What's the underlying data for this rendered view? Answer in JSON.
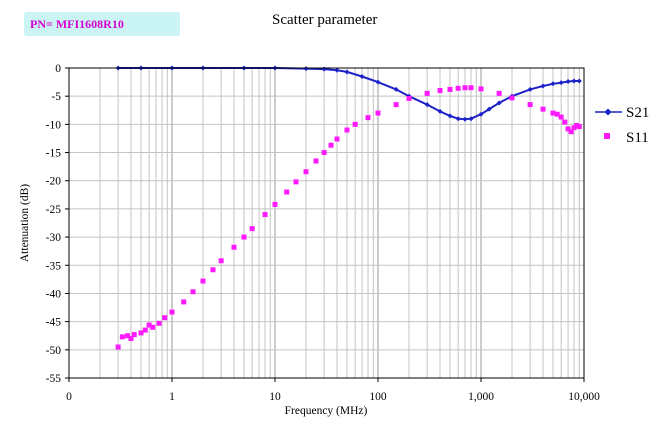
{
  "chart_data": {
    "type": "scatter",
    "title": "Scatter parameter",
    "part_number": "PN= MFI1608R10",
    "xlabel": "Frequency (MHz)",
    "ylabel": "Attenuation (dB)",
    "x_scale": "log",
    "xlim": [
      0.1,
      10000
    ],
    "ylim": [
      -55,
      0
    ],
    "x_tick_labels": [
      "0",
      "1",
      "10",
      "100",
      "1,000",
      "10,000"
    ],
    "y_ticks": [
      0,
      -5,
      -10,
      -15,
      -20,
      -25,
      -30,
      -35,
      -40,
      -45,
      -50,
      -55
    ],
    "grid": true,
    "legend_position": "right",
    "colors": {
      "S21": "#1c22c8",
      "S11": "#ff19ff"
    },
    "series": [
      {
        "name": "S21",
        "marker": "diamond-line",
        "points": [
          [
            0.3,
            0
          ],
          [
            0.5,
            0
          ],
          [
            1,
            0
          ],
          [
            2,
            0
          ],
          [
            5,
            0
          ],
          [
            10,
            0
          ],
          [
            20,
            -0.1
          ],
          [
            30,
            -0.2
          ],
          [
            40,
            -0.4
          ],
          [
            50,
            -0.7
          ],
          [
            70,
            -1.5
          ],
          [
            100,
            -2.5
          ],
          [
            150,
            -3.8
          ],
          [
            200,
            -5
          ],
          [
            300,
            -6.5
          ],
          [
            400,
            -7.7
          ],
          [
            500,
            -8.5
          ],
          [
            600,
            -9
          ],
          [
            700,
            -9.1
          ],
          [
            800,
            -9
          ],
          [
            1000,
            -8.2
          ],
          [
            1200,
            -7.3
          ],
          [
            1500,
            -6.2
          ],
          [
            2000,
            -5
          ],
          [
            3000,
            -3.8
          ],
          [
            4000,
            -3.2
          ],
          [
            5000,
            -2.8
          ],
          [
            6000,
            -2.6
          ],
          [
            7000,
            -2.4
          ],
          [
            8000,
            -2.3
          ],
          [
            9000,
            -2.3
          ]
        ]
      },
      {
        "name": "S11",
        "marker": "square",
        "points": [
          [
            0.3,
            -49.5
          ],
          [
            0.33,
            -47.7
          ],
          [
            0.37,
            -47.5
          ],
          [
            0.4,
            -48
          ],
          [
            0.43,
            -47.3
          ],
          [
            0.5,
            -47
          ],
          [
            0.55,
            -46.5
          ],
          [
            0.6,
            -45.6
          ],
          [
            0.65,
            -46
          ],
          [
            0.75,
            -45.3
          ],
          [
            0.85,
            -44.3
          ],
          [
            1,
            -43.3
          ],
          [
            1.3,
            -41.5
          ],
          [
            1.6,
            -39.7
          ],
          [
            2,
            -37.8
          ],
          [
            2.5,
            -35.8
          ],
          [
            3,
            -34.2
          ],
          [
            4,
            -31.8
          ],
          [
            5,
            -30
          ],
          [
            6,
            -28.5
          ],
          [
            8,
            -26
          ],
          [
            10,
            -24.2
          ],
          [
            13,
            -22
          ],
          [
            16,
            -20.2
          ],
          [
            20,
            -18.4
          ],
          [
            25,
            -16.5
          ],
          [
            30,
            -15
          ],
          [
            35,
            -13.7
          ],
          [
            40,
            -12.6
          ],
          [
            50,
            -11
          ],
          [
            60,
            -10
          ],
          [
            80,
            -8.8
          ],
          [
            100,
            -8
          ],
          [
            150,
            -6.5
          ],
          [
            200,
            -5.4
          ],
          [
            300,
            -4.5
          ],
          [
            400,
            -4
          ],
          [
            500,
            -3.8
          ],
          [
            600,
            -3.6
          ],
          [
            700,
            -3.5
          ],
          [
            800,
            -3.5
          ],
          [
            1000,
            -3.7
          ],
          [
            1500,
            -4.5
          ],
          [
            2000,
            -5.3
          ],
          [
            3000,
            -6.5
          ],
          [
            4000,
            -7.3
          ],
          [
            5000,
            -8
          ],
          [
            5500,
            -8.2
          ],
          [
            6000,
            -8.7
          ],
          [
            6500,
            -9.6
          ],
          [
            7000,
            -10.8
          ],
          [
            7500,
            -11.3
          ],
          [
            8000,
            -10.6
          ],
          [
            8500,
            -10.2
          ],
          [
            9000,
            -10.4
          ]
        ]
      }
    ]
  }
}
